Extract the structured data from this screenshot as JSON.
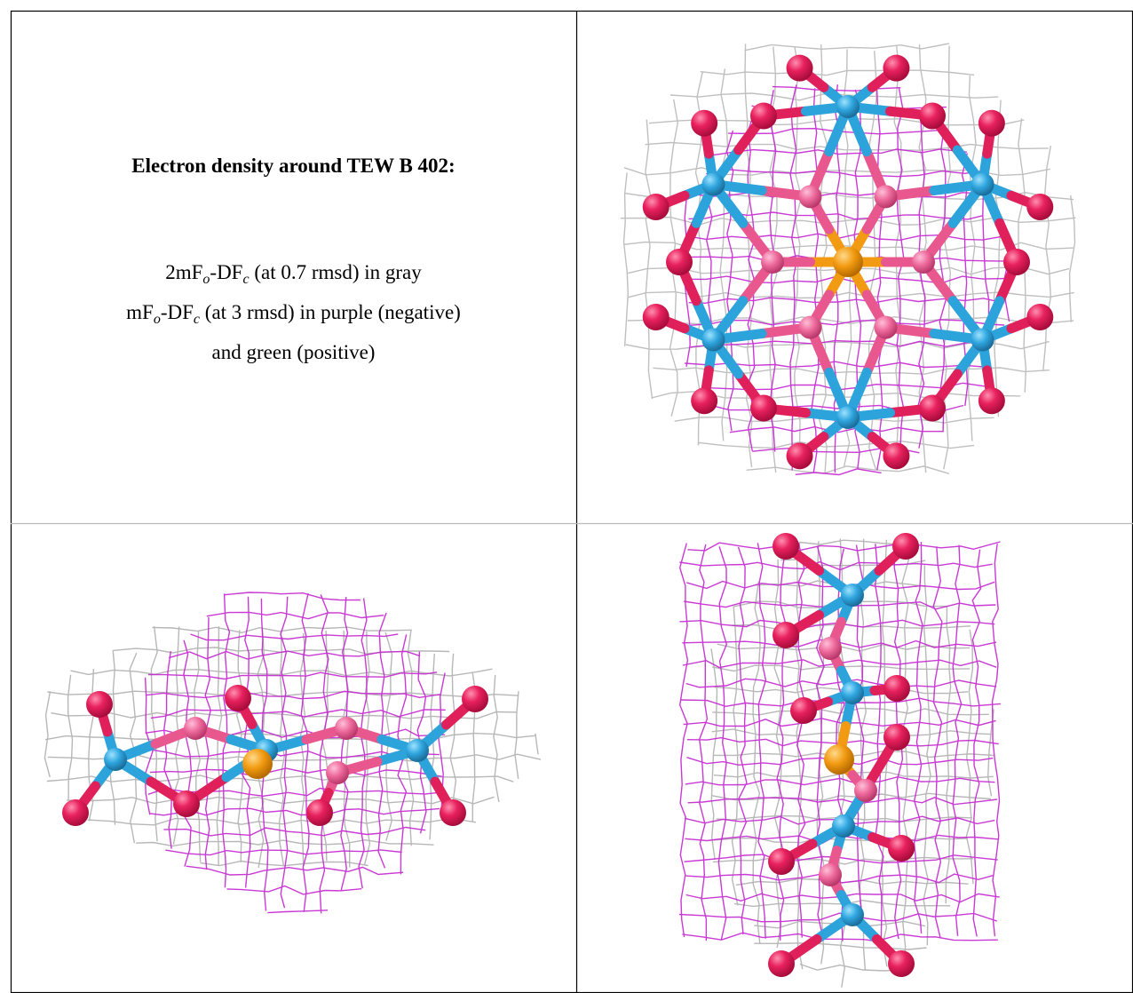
{
  "title": "Electron density around TEW B 402:",
  "legend_lines": [
    [
      {
        "text": "2mF"
      },
      {
        "sub": "o"
      },
      {
        "text": "-DF"
      },
      {
        "sub": "c"
      },
      {
        "text": " (at 0.7 rmsd) in gray"
      }
    ],
    [
      {
        "text": "mF"
      },
      {
        "sub": "o"
      },
      {
        "text": "-DF"
      },
      {
        "sub": "c"
      },
      {
        "text": " (at 3 rmsd) in purple (negative)"
      }
    ],
    [
      {
        "text": "and green (positive)"
      }
    ]
  ]
}
